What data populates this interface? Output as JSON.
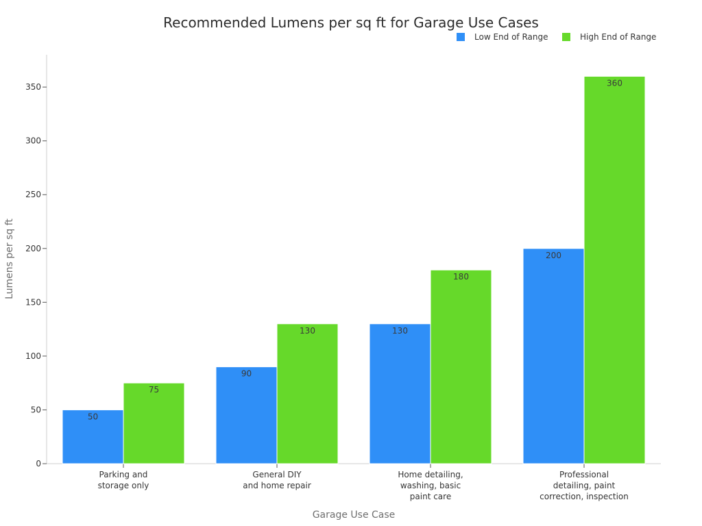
{
  "chart_data": {
    "type": "bar",
    "title": "Recommended Lumens per sq ft for Garage Use Cases",
    "xlabel": "Garage Use Case",
    "ylabel": "Lumens per sq ft",
    "categories": [
      [
        "Parking and",
        "storage only"
      ],
      [
        "General DIY",
        "and home repair"
      ],
      [
        "Home detailing,",
        "washing, basic",
        "paint care"
      ],
      [
        "Professional",
        "detailing, paint",
        "correction, inspection"
      ]
    ],
    "series": [
      {
        "name": "Low End of Range",
        "color": "#2f8ff7",
        "values": [
          50,
          90,
          130,
          200
        ]
      },
      {
        "name": "High End of Range",
        "color": "#66d92a",
        "values": [
          75,
          130,
          180,
          360
        ]
      }
    ],
    "ylim": [
      0,
      380
    ],
    "yticks": [
      0,
      50,
      100,
      150,
      200,
      250,
      300,
      350
    ],
    "grid": false,
    "legend": "top-right"
  }
}
